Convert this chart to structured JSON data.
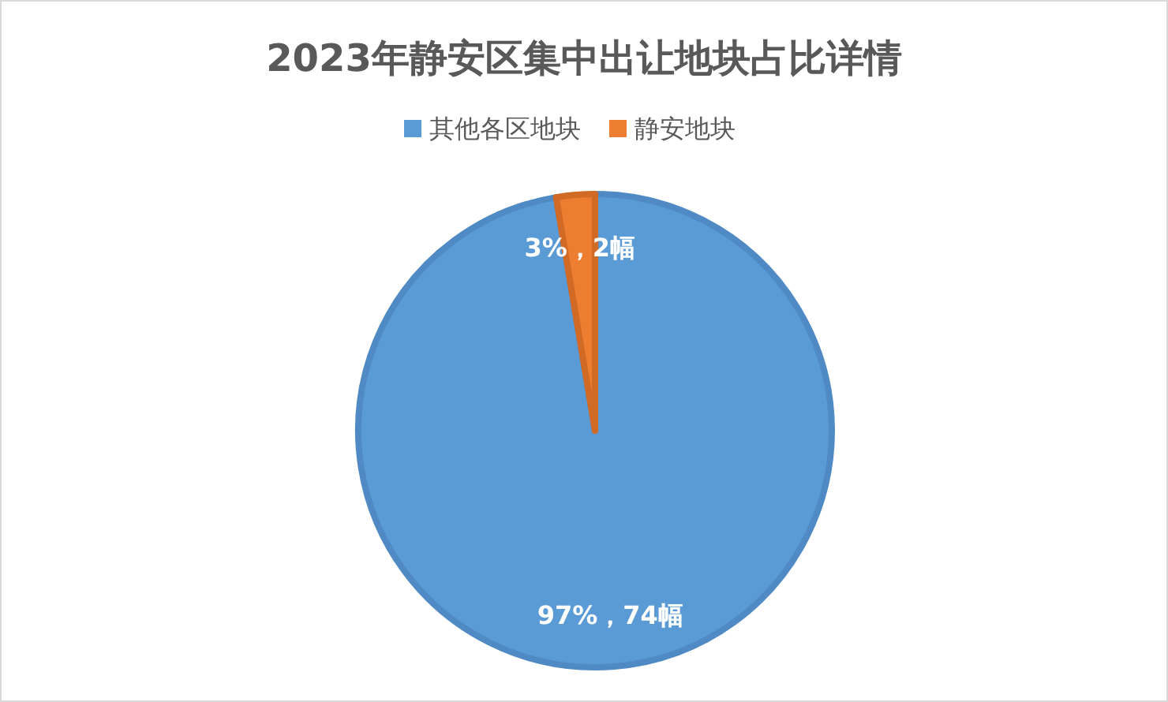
{
  "chart_data": {
    "type": "pie",
    "title": "2023年静安区集中出让地块占比详情",
    "categories": [
      "其他各区地块",
      "静安地块"
    ],
    "values": [
      74,
      2
    ],
    "colors": [
      "#5b9bd5",
      "#ed7d31"
    ],
    "value_labels": [
      "97%，74幅",
      "3%，2幅"
    ],
    "legend": "top"
  }
}
